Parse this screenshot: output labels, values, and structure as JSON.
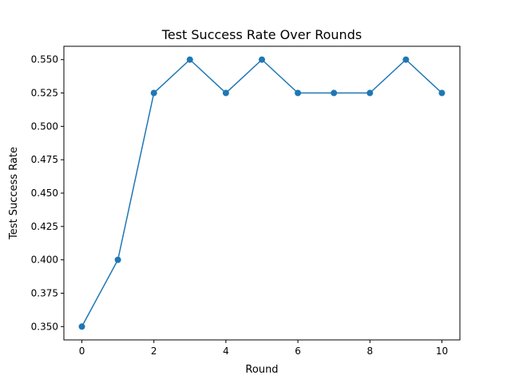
{
  "chart_data": {
    "type": "line",
    "title": "Test Success Rate Over Rounds",
    "xlabel": "Round",
    "ylabel": "Test Success Rate",
    "x": [
      0,
      1,
      2,
      3,
      4,
      5,
      6,
      7,
      8,
      9,
      10
    ],
    "series": [
      {
        "values": [
          0.35,
          0.4,
          0.525,
          0.55,
          0.525,
          0.55,
          0.525,
          0.525,
          0.525,
          0.55,
          0.525
        ],
        "color": "#1f77b4",
        "marker": "circle"
      }
    ],
    "xlim": [
      -0.5,
      10.5
    ],
    "ylim": [
      0.34,
      0.56
    ],
    "xticks": [
      0,
      2,
      4,
      6,
      8,
      10
    ],
    "yticks": [
      0.35,
      0.375,
      0.4,
      0.425,
      0.45,
      0.475,
      0.5,
      0.525,
      0.55
    ],
    "xtick_labels": [
      "0",
      "2",
      "4",
      "6",
      "8",
      "10"
    ],
    "ytick_labels": [
      "0.350",
      "0.375",
      "0.400",
      "0.425",
      "0.450",
      "0.475",
      "0.500",
      "0.525",
      "0.550"
    ],
    "grid": false,
    "legend": false
  }
}
